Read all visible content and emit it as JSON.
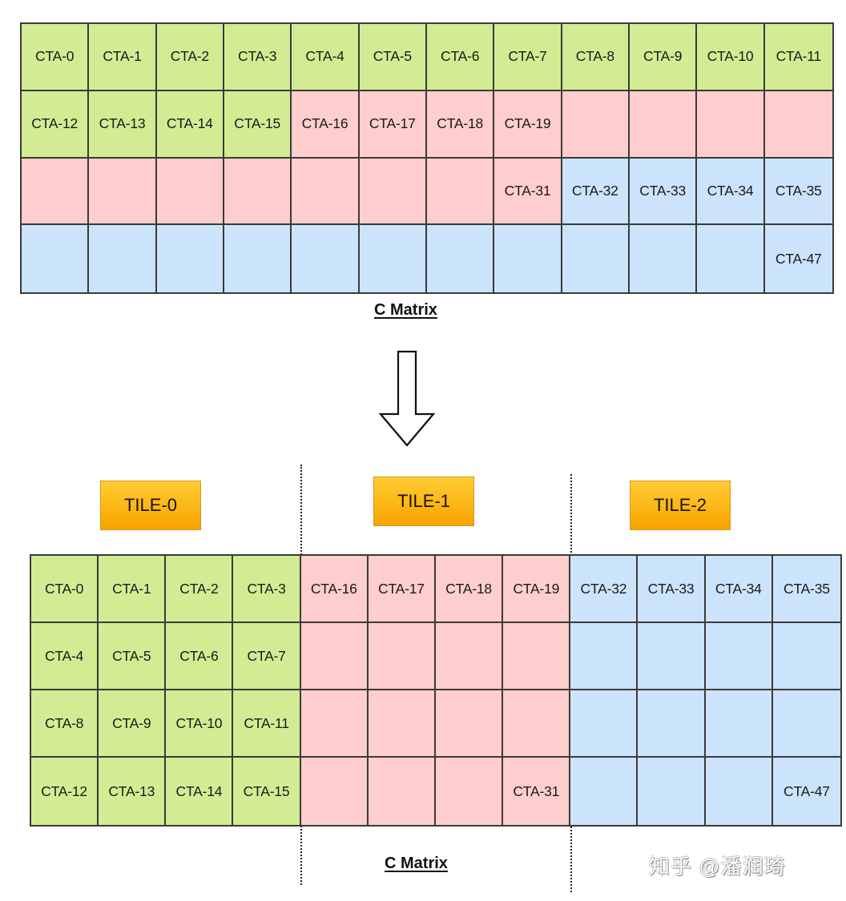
{
  "colors": {
    "tile0_green": "#d3ec93",
    "tile1_pink": "#fecdcd",
    "tile2_blue": "#cce4fb",
    "tile_label_orange": "#fbb413",
    "grid_line": "#3a3a3a"
  },
  "top": {
    "caption": "C Matrix",
    "rows": [
      [
        {
          "t": "CTA-0",
          "c": "g"
        },
        {
          "t": "CTA-1",
          "c": "g"
        },
        {
          "t": "CTA-2",
          "c": "g"
        },
        {
          "t": "CTA-3",
          "c": "g"
        },
        {
          "t": "CTA-4",
          "c": "g"
        },
        {
          "t": "CTA-5",
          "c": "g"
        },
        {
          "t": "CTA-6",
          "c": "g"
        },
        {
          "t": "CTA-7",
          "c": "g"
        },
        {
          "t": "CTA-8",
          "c": "g"
        },
        {
          "t": "CTA-9",
          "c": "g"
        },
        {
          "t": "CTA-10",
          "c": "g"
        },
        {
          "t": "CTA-11",
          "c": "g"
        }
      ],
      [
        {
          "t": "CTA-12",
          "c": "g"
        },
        {
          "t": "CTA-13",
          "c": "g"
        },
        {
          "t": "CTA-14",
          "c": "g"
        },
        {
          "t": "CTA-15",
          "c": "g"
        },
        {
          "t": "CTA-16",
          "c": "r"
        },
        {
          "t": "CTA-17",
          "c": "r"
        },
        {
          "t": "CTA-18",
          "c": "r"
        },
        {
          "t": "CTA-19",
          "c": "r"
        },
        {
          "t": "",
          "c": "r"
        },
        {
          "t": "",
          "c": "r"
        },
        {
          "t": "",
          "c": "r"
        },
        {
          "t": "",
          "c": "r"
        }
      ],
      [
        {
          "t": "",
          "c": "r"
        },
        {
          "t": "",
          "c": "r"
        },
        {
          "t": "",
          "c": "r"
        },
        {
          "t": "",
          "c": "r"
        },
        {
          "t": "",
          "c": "r"
        },
        {
          "t": "",
          "c": "r"
        },
        {
          "t": "",
          "c": "r"
        },
        {
          "t": "CTA-31",
          "c": "r"
        },
        {
          "t": "CTA-32",
          "c": "b"
        },
        {
          "t": "CTA-33",
          "c": "b"
        },
        {
          "t": "CTA-34",
          "c": "b"
        },
        {
          "t": "CTA-35",
          "c": "b"
        }
      ],
      [
        {
          "t": "",
          "c": "b"
        },
        {
          "t": "",
          "c": "b"
        },
        {
          "t": "",
          "c": "b"
        },
        {
          "t": "",
          "c": "b"
        },
        {
          "t": "",
          "c": "b"
        },
        {
          "t": "",
          "c": "b"
        },
        {
          "t": "",
          "c": "b"
        },
        {
          "t": "",
          "c": "b"
        },
        {
          "t": "",
          "c": "b"
        },
        {
          "t": "",
          "c": "b"
        },
        {
          "t": "",
          "c": "b"
        },
        {
          "t": "CTA-47",
          "c": "b"
        }
      ]
    ]
  },
  "arrow": {
    "icon": "down-arrow-icon"
  },
  "tiles": [
    {
      "label": "TILE-0"
    },
    {
      "label": "TILE-1"
    },
    {
      "label": "TILE-2"
    }
  ],
  "bottom": {
    "caption": "C Matrix",
    "rows": [
      [
        {
          "t": "CTA-0",
          "c": "g"
        },
        {
          "t": "CTA-1",
          "c": "g"
        },
        {
          "t": "CTA-2",
          "c": "g"
        },
        {
          "t": "CTA-3",
          "c": "g"
        },
        {
          "t": "CTA-16",
          "c": "r"
        },
        {
          "t": "CTA-17",
          "c": "r"
        },
        {
          "t": "CTA-18",
          "c": "r"
        },
        {
          "t": "CTA-19",
          "c": "r"
        },
        {
          "t": "CTA-32",
          "c": "b"
        },
        {
          "t": "CTA-33",
          "c": "b"
        },
        {
          "t": "CTA-34",
          "c": "b"
        },
        {
          "t": "CTA-35",
          "c": "b"
        }
      ],
      [
        {
          "t": "CTA-4",
          "c": "g"
        },
        {
          "t": "CTA-5",
          "c": "g"
        },
        {
          "t": "CTA-6",
          "c": "g"
        },
        {
          "t": "CTA-7",
          "c": "g"
        },
        {
          "t": "",
          "c": "r"
        },
        {
          "t": "",
          "c": "r"
        },
        {
          "t": "",
          "c": "r"
        },
        {
          "t": "",
          "c": "r"
        },
        {
          "t": "",
          "c": "b"
        },
        {
          "t": "",
          "c": "b"
        },
        {
          "t": "",
          "c": "b"
        },
        {
          "t": "",
          "c": "b"
        }
      ],
      [
        {
          "t": "CTA-8",
          "c": "g"
        },
        {
          "t": "CTA-9",
          "c": "g"
        },
        {
          "t": "CTA-10",
          "c": "g"
        },
        {
          "t": "CTA-11",
          "c": "g"
        },
        {
          "t": "",
          "c": "r"
        },
        {
          "t": "",
          "c": "r"
        },
        {
          "t": "",
          "c": "r"
        },
        {
          "t": "",
          "c": "r"
        },
        {
          "t": "",
          "c": "b"
        },
        {
          "t": "",
          "c": "b"
        },
        {
          "t": "",
          "c": "b"
        },
        {
          "t": "",
          "c": "b"
        }
      ],
      [
        {
          "t": "CTA-12",
          "c": "g"
        },
        {
          "t": "CTA-13",
          "c": "g"
        },
        {
          "t": "CTA-14",
          "c": "g"
        },
        {
          "t": "CTA-15",
          "c": "g"
        },
        {
          "t": "",
          "c": "r"
        },
        {
          "t": "",
          "c": "r"
        },
        {
          "t": "",
          "c": "r"
        },
        {
          "t": "CTA-31",
          "c": "r"
        },
        {
          "t": "",
          "c": "b"
        },
        {
          "t": "",
          "c": "b"
        },
        {
          "t": "",
          "c": "b"
        },
        {
          "t": "CTA-47",
          "c": "b"
        }
      ]
    ]
  },
  "watermark": "知乎 @潘润琦"
}
